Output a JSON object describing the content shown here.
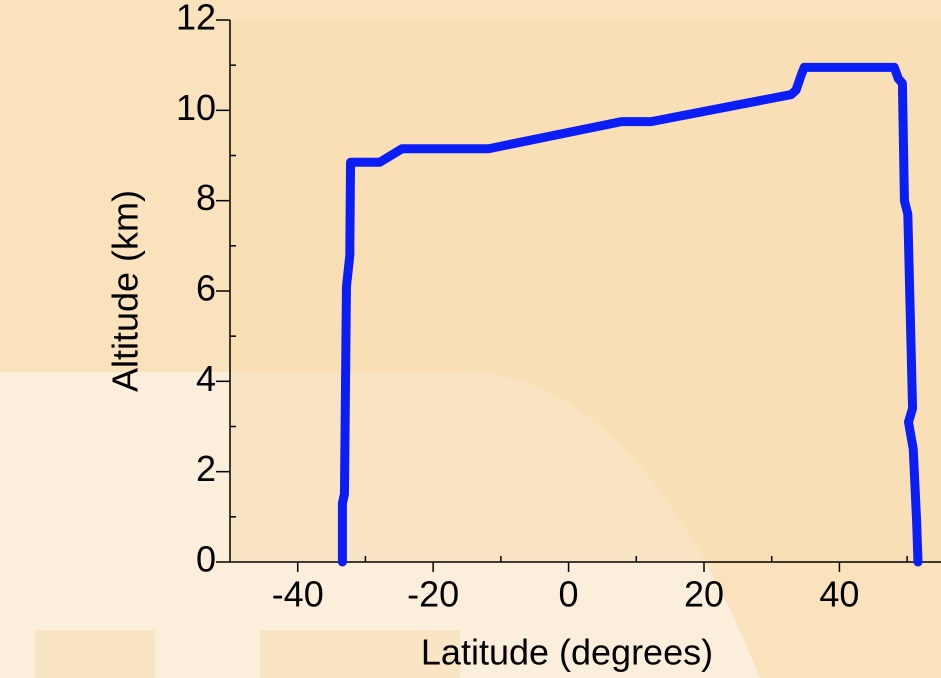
{
  "chart_data": {
    "type": "line",
    "x_label": "Latitude (degrees)",
    "y_label": "Altitude (km)",
    "x": [
      -33.4,
      -33.4,
      -33.1,
      -32.8,
      -32.3,
      -32.3,
      -32.2,
      -27.9,
      -24.6,
      -11.8,
      7.8,
      12.2,
      32.9,
      33.6,
      34.4,
      34.8,
      48.1,
      48.7,
      49.3,
      49.6,
      50.1,
      50.8,
      50.2,
      50.9,
      51.4,
      51.6
    ],
    "values": [
      0,
      1.3,
      1.5,
      6.1,
      6.8,
      7.0,
      8.85,
      8.85,
      9.15,
      9.15,
      9.75,
      9.75,
      10.35,
      10.45,
      10.8,
      10.95,
      10.95,
      10.7,
      10.6,
      8.0,
      7.7,
      3.4,
      3.1,
      2.5,
      0.9,
      0
    ],
    "color": "#0a1ef5",
    "xlim": [
      -50,
      55
    ],
    "xticks": [
      -40,
      -20,
      0,
      20,
      40
    ],
    "xminorticks": [
      -30,
      -10,
      10,
      30,
      50
    ],
    "ylim": [
      0,
      12
    ],
    "yticks": [
      0,
      2,
      4,
      6,
      8,
      10,
      12
    ],
    "yminorticks": [
      1,
      3,
      5,
      7,
      9,
      11
    ]
  }
}
